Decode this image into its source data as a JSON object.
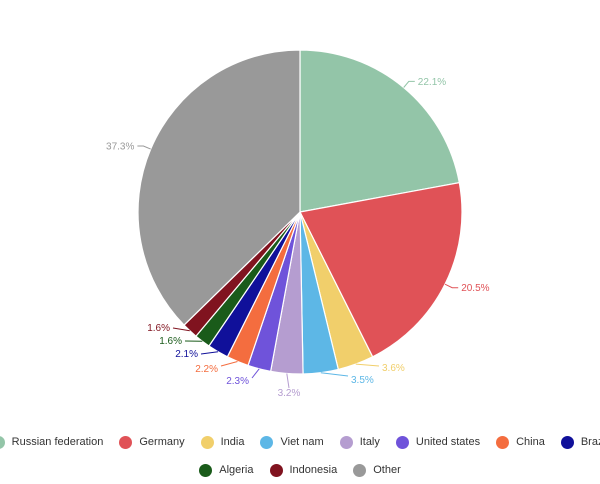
{
  "chart_data": {
    "type": "pie",
    "title": "",
    "categories": [
      "Russian federation",
      "Germany",
      "India",
      "Viet nam",
      "Italy",
      "United states",
      "China",
      "Brazil",
      "Algeria",
      "Indonesia",
      "Other"
    ],
    "values": [
      22.1,
      20.5,
      3.6,
      3.5,
      3.2,
      2.3,
      2.2,
      2.1,
      1.6,
      1.6,
      37.3
    ],
    "labels": [
      "22.1%",
      "20.5%",
      "3.6%",
      "3.5%",
      "3.2%",
      "2.3%",
      "2.2%",
      "2.1%",
      "1.6%",
      "1.6%",
      "37.3%"
    ],
    "colors": [
      "#93c5a8",
      "#e05257",
      "#f1cf6b",
      "#5db7e6",
      "#b59dd0",
      "#6f53da",
      "#f46d3f",
      "#10109a",
      "#1a5b1a",
      "#80131f",
      "#999999"
    ],
    "legend_position": "bottom"
  }
}
